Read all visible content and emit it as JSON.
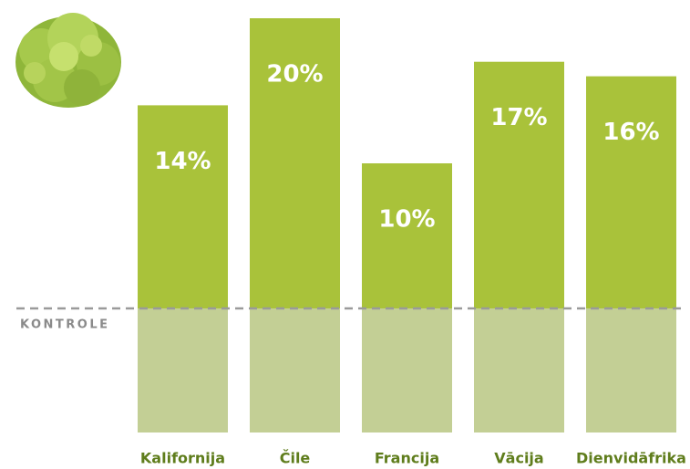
{
  "chart_data": {
    "type": "bar",
    "categories": [
      "Kalifornija",
      "Čile",
      "Francija",
      "Vācija",
      "Dienvidāfrika"
    ],
    "values": [
      14,
      20,
      10,
      17,
      16
    ],
    "value_labels": [
      "14%",
      "20%",
      "10%",
      "17%",
      "16%"
    ],
    "color": "#a9c23a",
    "control_color": "#c3cf95",
    "baseline_label": "KONTROLE"
  }
}
